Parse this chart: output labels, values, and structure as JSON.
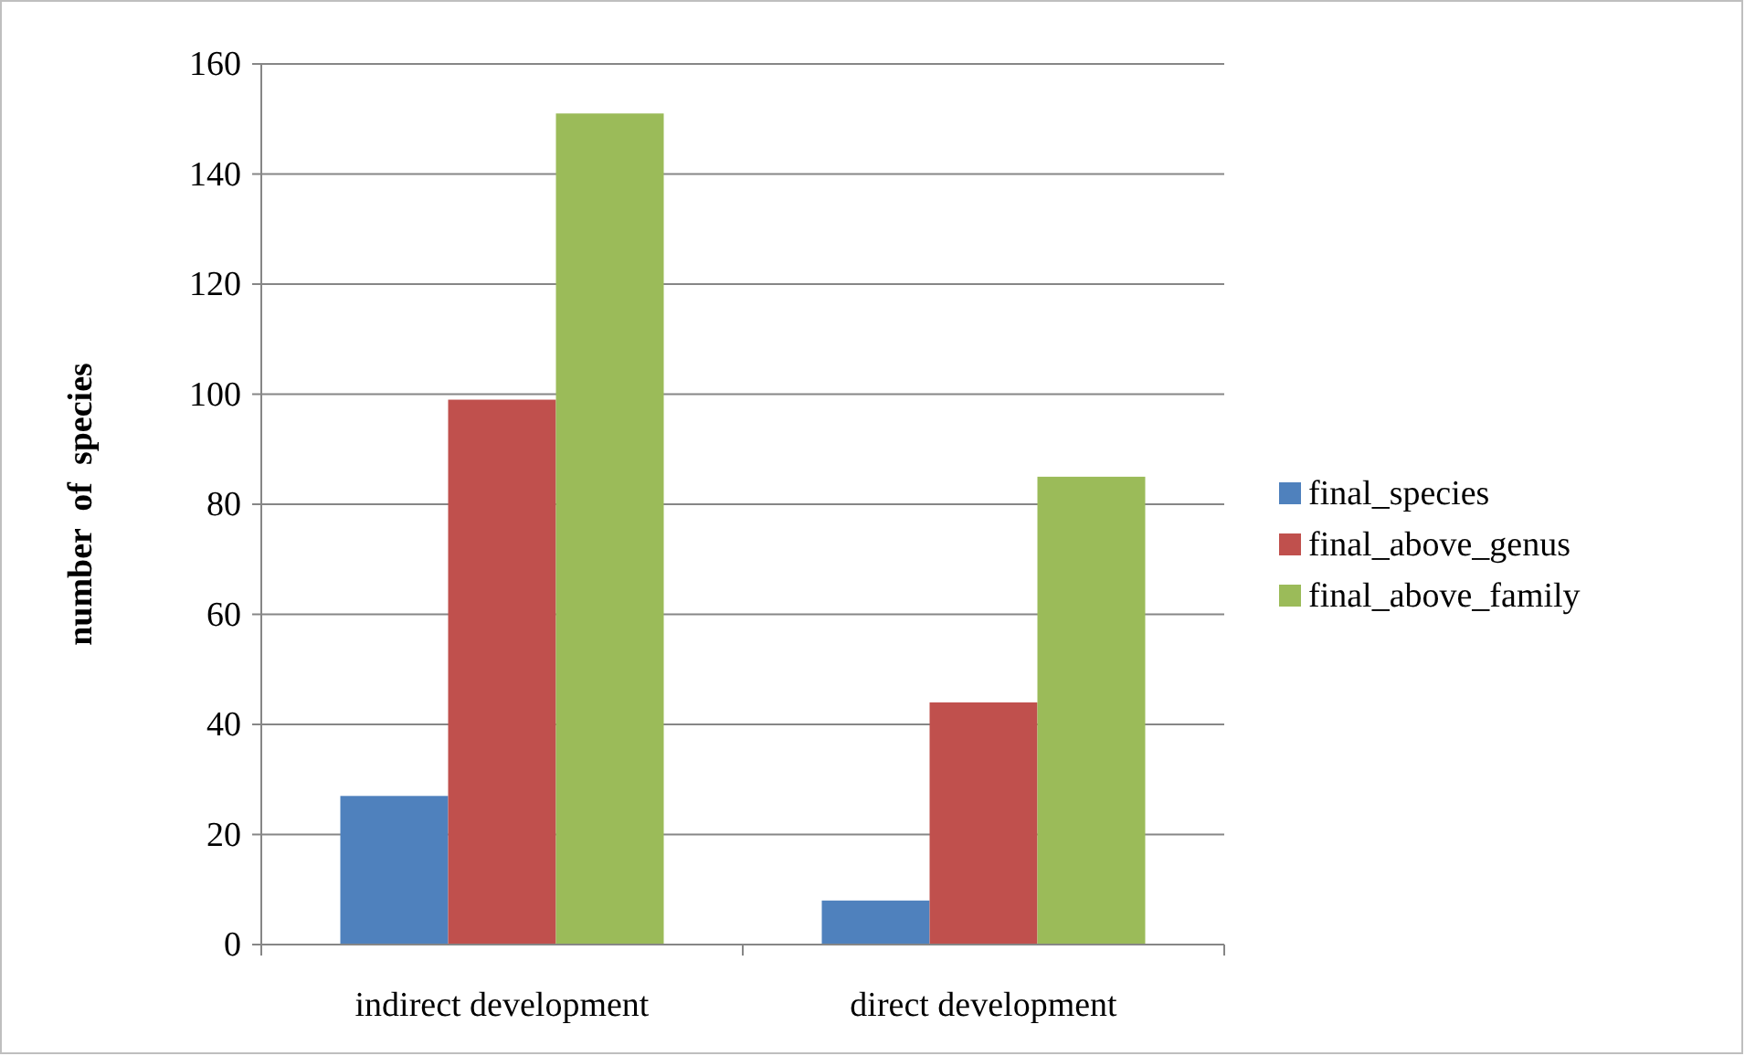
{
  "chart_data": {
    "type": "bar",
    "ylabel": "number  of  species",
    "categories": [
      "indirect development",
      "direct development"
    ],
    "series": [
      {
        "name": "final_species",
        "color": "#4f81bd",
        "values": [
          27,
          8
        ]
      },
      {
        "name": "final_above_genus",
        "color": "#c0504d",
        "values": [
          99,
          44
        ]
      },
      {
        "name": "final_above_family",
        "color": "#9bbb59",
        "values": [
          151,
          85
        ]
      }
    ],
    "ylim": [
      0,
      160
    ],
    "yticks": [
      0,
      20,
      40,
      60,
      80,
      100,
      120,
      140,
      160
    ],
    "grid": "y",
    "legend": "right"
  }
}
